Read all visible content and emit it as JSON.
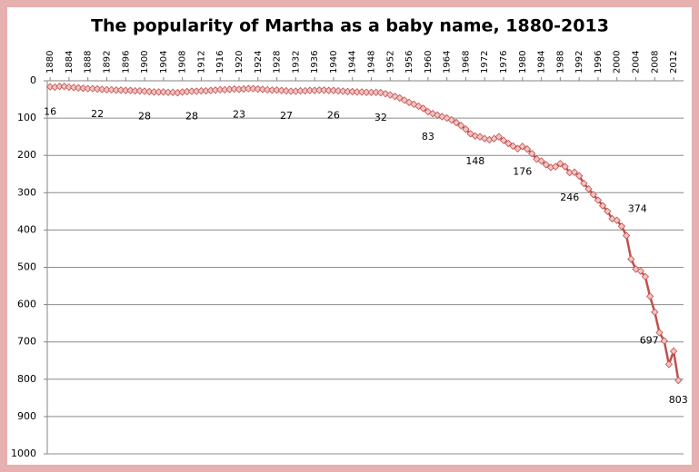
{
  "chart_data": {
    "type": "line",
    "title": "The popularity of Martha as a baby name, 1880-2013",
    "x": [
      1880,
      1881,
      1882,
      1883,
      1884,
      1885,
      1886,
      1887,
      1888,
      1889,
      1890,
      1891,
      1892,
      1893,
      1894,
      1895,
      1896,
      1897,
      1898,
      1899,
      1900,
      1901,
      1902,
      1903,
      1904,
      1905,
      1906,
      1907,
      1908,
      1909,
      1910,
      1911,
      1912,
      1913,
      1914,
      1915,
      1916,
      1917,
      1918,
      1919,
      1920,
      1921,
      1922,
      1923,
      1924,
      1925,
      1926,
      1927,
      1928,
      1929,
      1930,
      1931,
      1932,
      1933,
      1934,
      1935,
      1936,
      1937,
      1938,
      1939,
      1940,
      1941,
      1942,
      1943,
      1944,
      1945,
      1946,
      1947,
      1948,
      1949,
      1950,
      1951,
      1952,
      1953,
      1954,
      1955,
      1956,
      1957,
      1958,
      1959,
      1960,
      1961,
      1962,
      1963,
      1964,
      1965,
      1966,
      1967,
      1968,
      1969,
      1970,
      1971,
      1972,
      1973,
      1974,
      1975,
      1976,
      1977,
      1978,
      1979,
      1980,
      1981,
      1982,
      1983,
      1984,
      1985,
      1986,
      1987,
      1988,
      1989,
      1990,
      1991,
      1992,
      1993,
      1994,
      1995,
      1996,
      1997,
      1998,
      1999,
      2000,
      2001,
      2002,
      2003,
      2004,
      2005,
      2006,
      2007,
      2008,
      2009,
      2010,
      2011,
      2012,
      2013
    ],
    "series": [
      {
        "color": "#c0504d",
        "marker_fill": "#f2c4c3",
        "values": [
          16,
          17,
          15,
          15,
          17,
          18,
          19,
          20,
          21,
          21,
          22,
          23,
          24,
          24,
          25,
          25,
          26,
          26,
          27,
          27,
          28,
          29,
          30,
          30,
          30,
          31,
          31,
          32,
          30,
          29,
          28,
          28,
          27,
          27,
          26,
          25,
          24,
          24,
          23,
          22,
          23,
          22,
          21,
          21,
          22,
          23,
          24,
          25,
          25,
          26,
          27,
          28,
          28,
          27,
          27,
          26,
          26,
          25,
          25,
          26,
          26,
          27,
          28,
          29,
          29,
          30,
          30,
          31,
          31,
          31,
          32,
          35,
          38,
          42,
          46,
          52,
          58,
          63,
          68,
          74,
          83,
          88,
          92,
          96,
          100,
          105,
          112,
          120,
          130,
          142,
          148,
          150,
          155,
          158,
          155,
          150,
          160,
          168,
          175,
          182,
          176,
          183,
          195,
          210,
          215,
          225,
          232,
          230,
          222,
          230,
          246,
          245,
          255,
          275,
          290,
          305,
          320,
          335,
          350,
          370,
          374,
          390,
          415,
          478,
          505,
          510,
          525,
          578,
          620,
          675,
          697,
          760,
          725,
          803
        ],
        "value_labels": [
          "16",
          null,
          null,
          null,
          null,
          null,
          null,
          null,
          null,
          null,
          "22",
          null,
          null,
          null,
          null,
          null,
          null,
          null,
          null,
          null,
          "28",
          null,
          null,
          null,
          null,
          null,
          null,
          null,
          null,
          null,
          "28",
          null,
          null,
          null,
          null,
          null,
          null,
          null,
          null,
          null,
          "23",
          null,
          null,
          null,
          null,
          null,
          null,
          null,
          null,
          null,
          "27",
          null,
          null,
          null,
          null,
          null,
          null,
          null,
          null,
          null,
          "26",
          null,
          null,
          null,
          null,
          null,
          null,
          null,
          null,
          null,
          "32",
          null,
          null,
          null,
          null,
          null,
          null,
          null,
          null,
          null,
          "83",
          null,
          null,
          null,
          null,
          null,
          null,
          null,
          null,
          null,
          "148",
          null,
          null,
          null,
          null,
          null,
          null,
          null,
          null,
          null,
          "176",
          null,
          null,
          null,
          null,
          null,
          null,
          null,
          null,
          null,
          "246",
          null,
          null,
          null,
          null,
          null,
          null,
          null,
          null,
          null,
          "374",
          null,
          null,
          null,
          null,
          null,
          null,
          null,
          null,
          null,
          "697",
          null,
          null,
          "803"
        ]
      }
    ],
    "xlim": [
      1879.4,
      2014.1
    ],
    "xticks": [
      1880,
      1884,
      1888,
      1892,
      1896,
      1900,
      1904,
      1908,
      1912,
      1916,
      1920,
      1924,
      1928,
      1932,
      1936,
      1940,
      1944,
      1948,
      1952,
      1956,
      1960,
      1964,
      1968,
      1972,
      1976,
      1980,
      1984,
      1988,
      1992,
      1996,
      2000,
      2004,
      2008,
      2012
    ],
    "ylim": [
      0,
      1000
    ],
    "y_inverted": true,
    "yticks": [
      0,
      100,
      200,
      300,
      400,
      500,
      600,
      700,
      800,
      900,
      1000
    ],
    "grid": true
  }
}
